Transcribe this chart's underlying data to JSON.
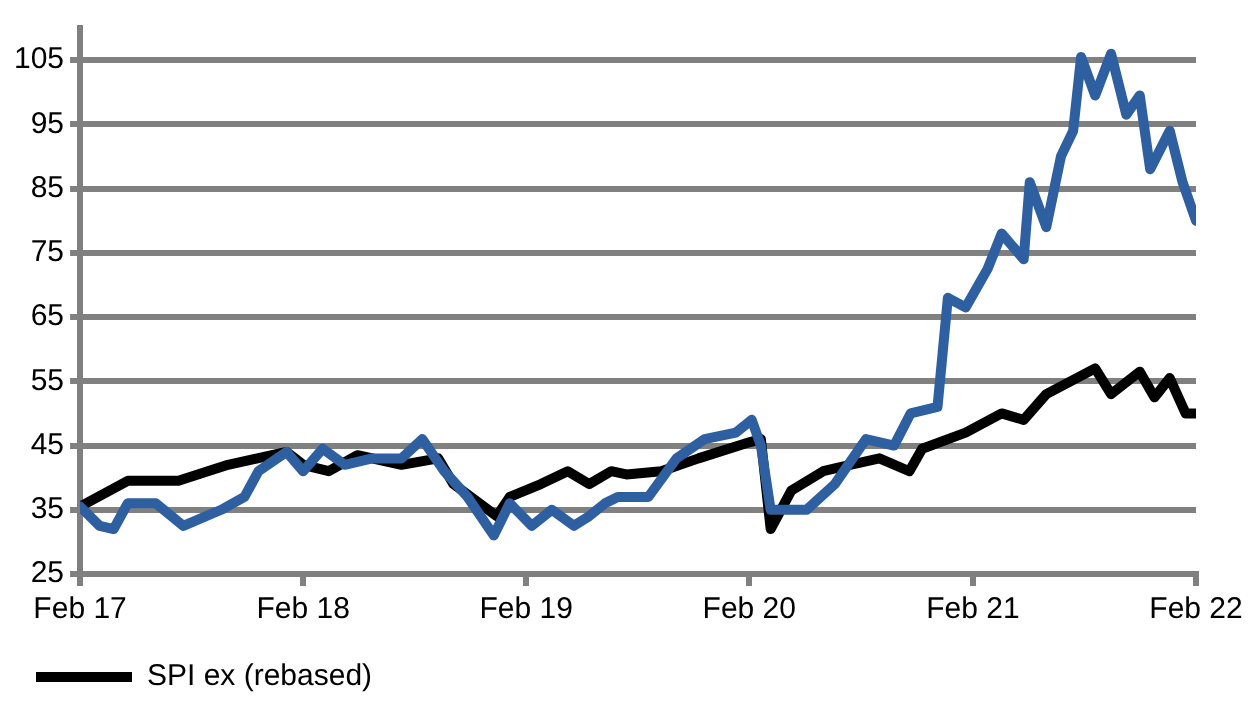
{
  "chart_data": {
    "type": "line",
    "xlim": [
      "2017-02-01",
      "2022-02-01"
    ],
    "xticks": [
      {
        "value": "2017-02-01",
        "label": "Feb 17"
      },
      {
        "value": "2018-02-01",
        "label": "Feb 18"
      },
      {
        "value": "2019-02-01",
        "label": "Feb 19"
      },
      {
        "value": "2020-02-01",
        "label": "Feb 20"
      },
      {
        "value": "2021-02-01",
        "label": "Feb 21"
      },
      {
        "value": "2022-02-01",
        "label": "Feb 22"
      }
    ],
    "ylim": [
      25,
      110
    ],
    "yticks": [
      25,
      35,
      45,
      55,
      65,
      75,
      85,
      95,
      105
    ],
    "grid": "y",
    "legend": "bottom",
    "marker": "none",
    "line_style": "solid",
    "series": [
      {
        "color": "#2e5fa0",
        "x": [
          "2017-02-01",
          "2017-03-05",
          "2017-03-28",
          "2017-04-20",
          "2017-06-05",
          "2017-07-20",
          "2017-09-20",
          "2017-10-28",
          "2017-11-20",
          "2018-01-05",
          "2018-02-01",
          "2018-03-05",
          "2018-04-10",
          "2018-05-25",
          "2018-07-12",
          "2018-08-15",
          "2018-09-20",
          "2018-10-28",
          "2018-12-10",
          "2019-01-05",
          "2019-02-10",
          "2019-03-15",
          "2019-04-20",
          "2019-05-15",
          "2019-06-10",
          "2019-07-01",
          "2019-08-20",
          "2019-10-05",
          "2019-11-20",
          "2020-01-10",
          "2020-02-05",
          "2020-02-20",
          "2020-03-07",
          "2020-05-05",
          "2020-06-20",
          "2020-08-10",
          "2020-09-25",
          "2020-10-22",
          "2020-12-05",
          "2020-12-22",
          "2021-01-20",
          "2021-02-25",
          "2021-03-20",
          "2021-04-25",
          "2021-05-05",
          "2021-06-01",
          "2021-06-25",
          "2021-07-15",
          "2021-07-28",
          "2021-08-20",
          "2021-09-15",
          "2021-10-10",
          "2021-11-01",
          "2021-11-18",
          "2021-12-20",
          "2022-01-10",
          "2022-02-01"
        ],
        "values": [
          35.5,
          32.5,
          32,
          36,
          36,
          32.5,
          35,
          37,
          41,
          44,
          41,
          44.5,
          42,
          43,
          43,
          46,
          41,
          37,
          31,
          36,
          32.5,
          35,
          32.5,
          34,
          36,
          37,
          37,
          43,
          46,
          47,
          49,
          45,
          35,
          35,
          39,
          46,
          45,
          50,
          51,
          68,
          66.5,
          72.5,
          78,
          74,
          86,
          79,
          90,
          94,
          105.5,
          99.5,
          106,
          96.5,
          99.5,
          88,
          94,
          86,
          80
        ]
      },
      {
        "name": "SPI ex (rebased)",
        "color": "#000000",
        "x": [
          "2017-02-01",
          "2017-04-20",
          "2017-07-12",
          "2017-10-01",
          "2018-01-05",
          "2018-02-01",
          "2018-03-15",
          "2018-05-01",
          "2018-07-12",
          "2018-09-10",
          "2018-10-05",
          "2018-12-15",
          "2019-01-05",
          "2019-02-25",
          "2019-04-10",
          "2019-05-15",
          "2019-06-20",
          "2019-07-15",
          "2019-09-10",
          "2019-11-10",
          "2020-02-01",
          "2020-02-20",
          "2020-03-07",
          "2020-04-10",
          "2020-06-01",
          "2020-07-15",
          "2020-09-01",
          "2020-10-20",
          "2020-11-10",
          "2021-01-20",
          "2021-03-20",
          "2021-04-25",
          "2021-06-01",
          "2021-08-20",
          "2021-09-15",
          "2021-11-01",
          "2021-11-25",
          "2021-12-20",
          "2022-01-15",
          "2022-02-01"
        ],
        "values": [
          35.5,
          39.5,
          39.5,
          42,
          44,
          42,
          41,
          43.5,
          42,
          43,
          39,
          34,
          37,
          39,
          41,
          39,
          41,
          40.5,
          41,
          43,
          45.5,
          46,
          32,
          38,
          41,
          42,
          43,
          41,
          44.5,
          47,
          50,
          49,
          53,
          57,
          53,
          56.5,
          52.5,
          55.5,
          50,
          50
        ]
      }
    ]
  }
}
